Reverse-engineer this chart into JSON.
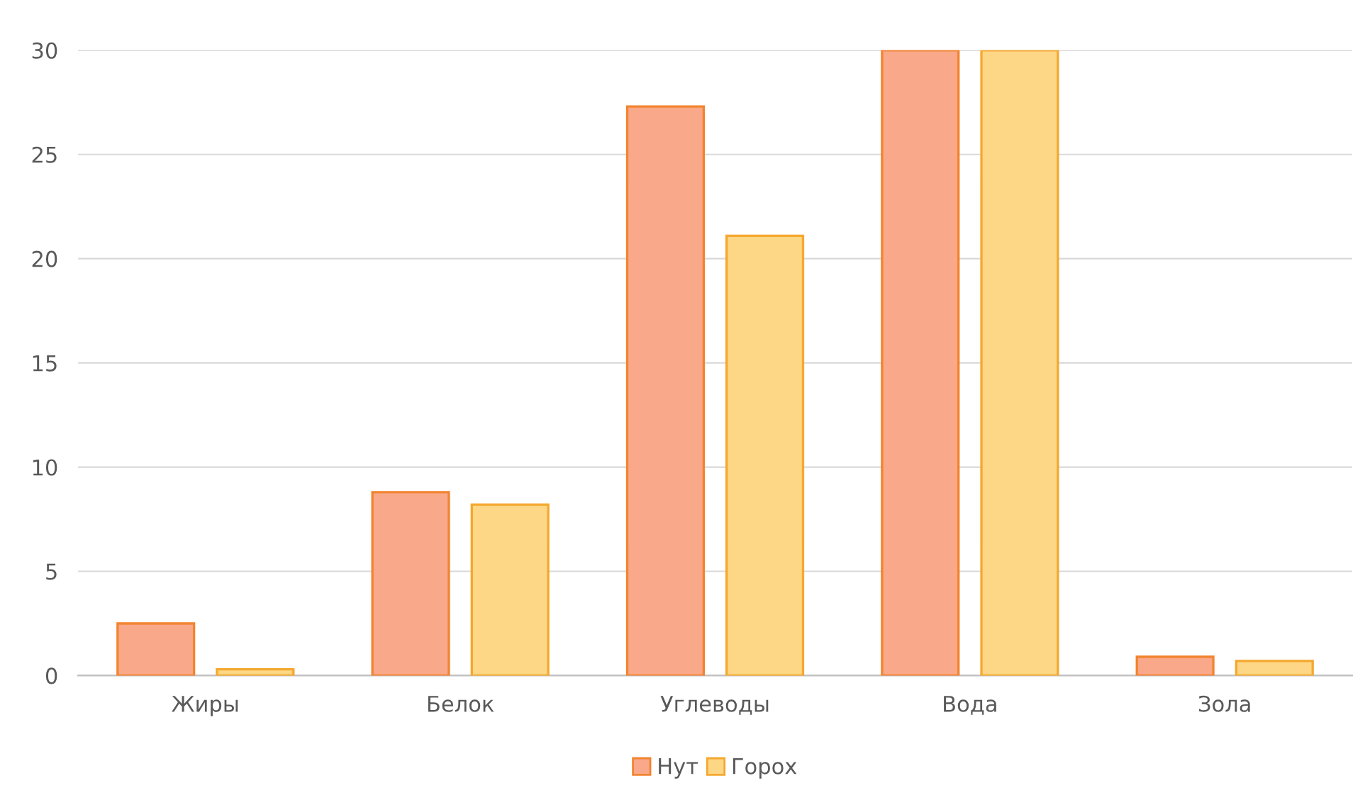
{
  "chart_data": {
    "type": "bar",
    "categories": [
      "Жиры",
      "Белок",
      "Углеводы",
      "Вода",
      "Зола"
    ],
    "series": [
      {
        "name": "Нут",
        "color": "#f9a98a",
        "values": [
          2.5,
          8.8,
          27.3,
          30,
          0.9
        ]
      },
      {
        "name": "Горох",
        "color": "#fdd785",
        "values": [
          0.3,
          8.2,
          21.1,
          30,
          0.7
        ]
      }
    ],
    "ylim": [
      0,
      30
    ],
    "yticks": [
      0,
      5,
      10,
      15,
      20,
      25,
      30
    ],
    "grid": "y",
    "legend": "bottom"
  }
}
